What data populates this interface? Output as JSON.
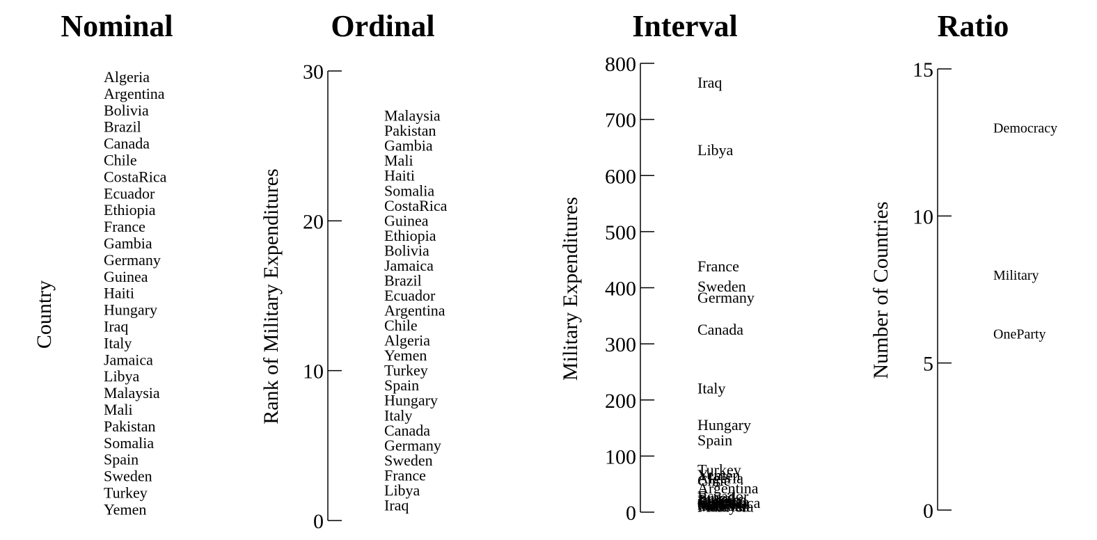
{
  "chart_data": [
    {
      "type": "table",
      "title": "Nominal",
      "ylabel": "Country",
      "items": [
        "Algeria",
        "Argentina",
        "Bolivia",
        "Brazil",
        "Canada",
        "Chile",
        "CostaRica",
        "Ecuador",
        "Ethiopia",
        "France",
        "Gambia",
        "Germany",
        "Guinea",
        "Haiti",
        "Hungary",
        "Iraq",
        "Italy",
        "Jamaica",
        "Libya",
        "Malaysia",
        "Mali",
        "Pakistan",
        "Somalia",
        "Spain",
        "Sweden",
        "Turkey",
        "Yemen"
      ]
    },
    {
      "type": "scatter",
      "title": "Ordinal",
      "ylabel": "Rank of Military Expenditures",
      "ylim": [
        0,
        30
      ],
      "yticks": [
        "0",
        "10",
        "20",
        "30"
      ],
      "points": [
        {
          "label": "Iraq",
          "y": 1
        },
        {
          "label": "Libya",
          "y": 2
        },
        {
          "label": "France",
          "y": 3
        },
        {
          "label": "Sweden",
          "y": 4
        },
        {
          "label": "Germany",
          "y": 5
        },
        {
          "label": "Canada",
          "y": 6
        },
        {
          "label": "Italy",
          "y": 7
        },
        {
          "label": "Hungary",
          "y": 8
        },
        {
          "label": "Spain",
          "y": 9
        },
        {
          "label": "Turkey",
          "y": 10
        },
        {
          "label": "Yemen",
          "y": 11
        },
        {
          "label": "Algeria",
          "y": 12
        },
        {
          "label": "Chile",
          "y": 13
        },
        {
          "label": "Argentina",
          "y": 14
        },
        {
          "label": "Ecuador",
          "y": 15
        },
        {
          "label": "Brazil",
          "y": 16
        },
        {
          "label": "Jamaica",
          "y": 17
        },
        {
          "label": "Bolivia",
          "y": 18
        },
        {
          "label": "Ethiopia",
          "y": 19
        },
        {
          "label": "Guinea",
          "y": 20
        },
        {
          "label": "CostaRica",
          "y": 21
        },
        {
          "label": "Somalia",
          "y": 22
        },
        {
          "label": "Haiti",
          "y": 23
        },
        {
          "label": "Mali",
          "y": 24
        },
        {
          "label": "Gambia",
          "y": 25
        },
        {
          "label": "Pakistan",
          "y": 26
        },
        {
          "label": "Malaysia",
          "y": 27
        }
      ]
    },
    {
      "type": "scatter",
      "title": "Interval",
      "ylabel": "Military Expenditures",
      "ylim": [
        0,
        800
      ],
      "yticks": [
        "0",
        "100",
        "200",
        "300",
        "400",
        "500",
        "600",
        "700",
        "800"
      ],
      "points": [
        {
          "label": "Iraq",
          "y": 765
        },
        {
          "label": "Libya",
          "y": 645
        },
        {
          "label": "France",
          "y": 438
        },
        {
          "label": "Sweden",
          "y": 402
        },
        {
          "label": "Germany",
          "y": 382
        },
        {
          "label": "Canada",
          "y": 325
        },
        {
          "label": "Italy",
          "y": 220
        },
        {
          "label": "Hungary",
          "y": 155
        },
        {
          "label": "Spain",
          "y": 128
        },
        {
          "label": "Turkey",
          "y": 75
        },
        {
          "label": "Yemen",
          "y": 66
        },
        {
          "label": "Algeria",
          "y": 60
        },
        {
          "label": "Chile",
          "y": 56
        },
        {
          "label": "Argentina",
          "y": 42
        },
        {
          "label": "Ecuador",
          "y": 28
        },
        {
          "label": "Brazil",
          "y": 25
        },
        {
          "label": "Jamaica",
          "y": 22
        },
        {
          "label": "Bolivia",
          "y": 20
        },
        {
          "label": "Ethiopia",
          "y": 18
        },
        {
          "label": "Guinea",
          "y": 17
        },
        {
          "label": "CostaRica",
          "y": 16
        },
        {
          "label": "Somalia",
          "y": 15
        },
        {
          "label": "Haiti",
          "y": 14
        },
        {
          "label": "Mali",
          "y": 13
        },
        {
          "label": "Gambia",
          "y": 11
        },
        {
          "label": "Pakistan",
          "y": 10
        },
        {
          "label": "Malaysia",
          "y": 9
        }
      ]
    },
    {
      "type": "scatter",
      "title": "Ratio",
      "ylabel": "Number of Countries",
      "ylim": [
        0,
        15
      ],
      "yticks": [
        "0",
        "5",
        "10",
        "15"
      ],
      "points": [
        {
          "label": "Democracy",
          "y": 13
        },
        {
          "label": "Military",
          "y": 8
        },
        {
          "label": "OneParty",
          "y": 6
        }
      ]
    }
  ]
}
